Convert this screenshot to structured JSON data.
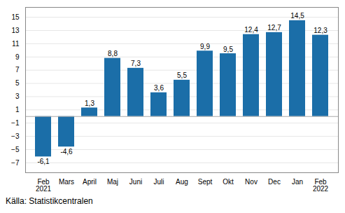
{
  "chart_data": {
    "type": "bar",
    "categories": [
      "Feb\n2021",
      "Mars",
      "April",
      "Maj",
      "Juni",
      "Juli",
      "Aug",
      "Sept",
      "Okt",
      "Nov",
      "Dec",
      "Jan",
      "Feb\n2022"
    ],
    "values": [
      -6.1,
      -4.6,
      1.3,
      8.8,
      7.3,
      3.6,
      5.5,
      9.9,
      9.5,
      12.4,
      12.7,
      14.5,
      12.3
    ],
    "value_labels": [
      "-6,1",
      "-4,6",
      "1,3",
      "8,8",
      "7,3",
      "3,6",
      "5,5",
      "9,9",
      "9,5",
      "12,4",
      "12,7",
      "14,5",
      "12,3"
    ],
    "color": "#1b6ea8",
    "ylim": [
      -8.5,
      16.5
    ],
    "yticks": [
      -7,
      -5,
      -3,
      -1,
      1,
      3,
      5,
      7,
      9,
      11,
      13,
      15
    ],
    "grid": true,
    "caption": "Källa: Statistikcentralen"
  }
}
